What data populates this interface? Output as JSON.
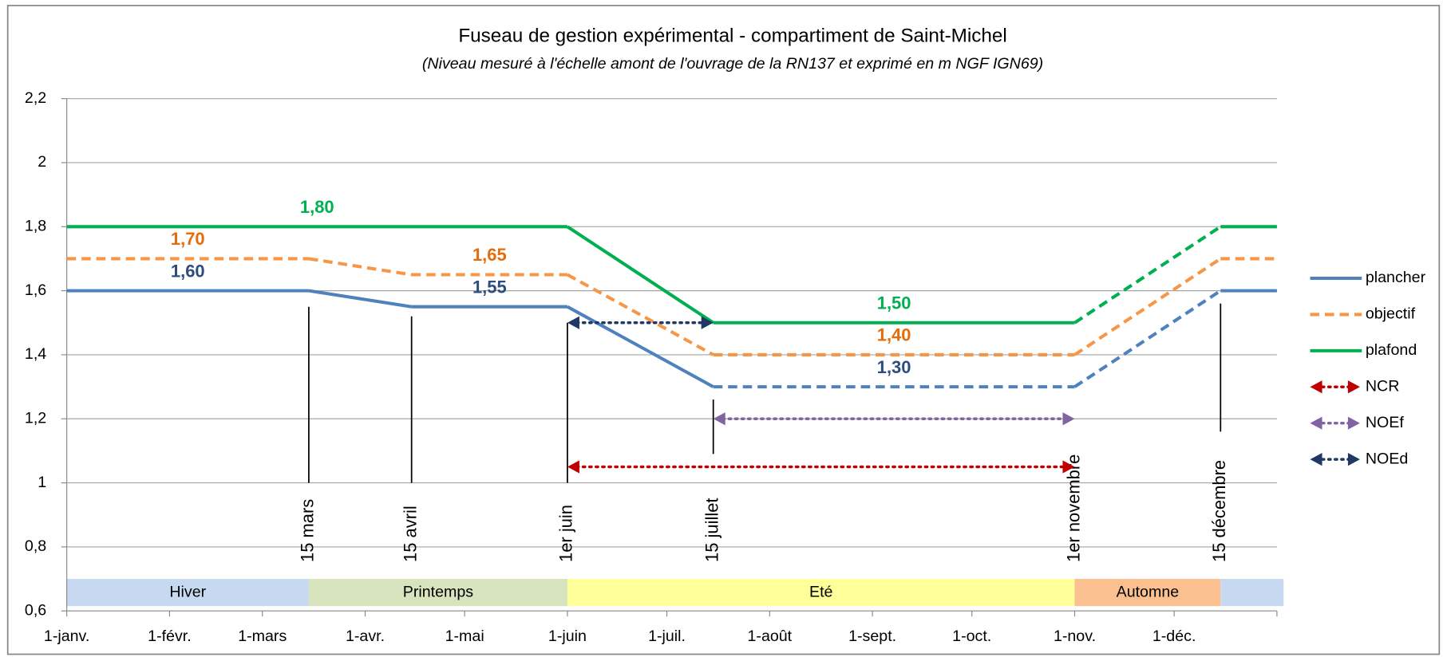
{
  "chart_data": {
    "type": "line",
    "title": "Fuseau de gestion expérimental - compartiment de Saint-Michel",
    "subtitle": "(Niveau mesuré à l'échelle amont de l'ouvrage de la RN137 et exprimé en m NGF IGN69)",
    "xlim": [
      0,
      365
    ],
    "xticks": [
      {
        "value": 0,
        "label": "1-janv."
      },
      {
        "value": 31,
        "label": "1-févr."
      },
      {
        "value": 59,
        "label": "1-mars"
      },
      {
        "value": 90,
        "label": "1-avr."
      },
      {
        "value": 120,
        "label": "1-mai"
      },
      {
        "value": 151,
        "label": "1-juin"
      },
      {
        "value": 181,
        "label": "1-juil."
      },
      {
        "value": 212,
        "label": "1-août"
      },
      {
        "value": 243,
        "label": "1-sept."
      },
      {
        "value": 273,
        "label": "1-oct."
      },
      {
        "value": 304,
        "label": "1-nov."
      },
      {
        "value": 334,
        "label": "1-déc."
      }
    ],
    "ylim": [
      0.6,
      2.2
    ],
    "yticks": [
      {
        "value": 0.6,
        "label": "0,6"
      },
      {
        "value": 0.8,
        "label": "0,8"
      },
      1,
      {
        "value": 1.2,
        "label": "1,2"
      },
      {
        "value": 1.4,
        "label": "1,4"
      },
      {
        "value": 1.6,
        "label": "1,6"
      },
      {
        "value": 1.8,
        "label": "1,8"
      },
      2,
      {
        "value": 2.2,
        "label": "2,2"
      }
    ],
    "grid": true,
    "legend": "right",
    "series": [
      {
        "name": "plancher",
        "color": "#4f81bd",
        "label_color": "#2c4d7e",
        "x": [
          0,
          73,
          104,
          151,
          195,
          304,
          348,
          365
        ],
        "values": [
          1.6,
          1.6,
          1.55,
          1.55,
          1.3,
          1.3,
          1.6,
          1.6
        ],
        "value_labels": [
          "1,60",
          null,
          "1,55",
          null,
          "1,30",
          null,
          null,
          null
        ],
        "line_styles": [
          "solid",
          "solid",
          "solid",
          "solid",
          "dashed",
          "dashed",
          "solid"
        ]
      },
      {
        "name": "objectif",
        "color": "#f79646",
        "label_color": "#e46c0a",
        "x": [
          0,
          73,
          104,
          151,
          195,
          304,
          348,
          365
        ],
        "values": [
          1.7,
          1.7,
          1.65,
          1.65,
          1.4,
          1.4,
          1.7,
          1.7
        ],
        "value_labels": [
          "1,70",
          null,
          "1,65",
          null,
          "1,40",
          null,
          null,
          null
        ],
        "line_styles": [
          "dashed",
          "dashed",
          "dashed",
          "dashed",
          "dashed",
          "dashed",
          "dashed"
        ]
      },
      {
        "name": "plafond",
        "color": "#00b050",
        "label_color": "#00b050",
        "x": [
          0,
          151,
          195,
          304,
          348,
          365
        ],
        "values": [
          1.8,
          1.8,
          1.5,
          1.5,
          1.8,
          1.8
        ],
        "value_labels": [
          "1,80",
          null,
          "1,50",
          null,
          null,
          null
        ],
        "line_styles": [
          "solid",
          "solid",
          "solid",
          "dashed",
          "solid"
        ]
      }
    ],
    "arrows": [
      {
        "name": "NCR",
        "color": "#c00000",
        "x": [
          151,
          304
        ],
        "value": 1.05
      },
      {
        "name": "NOEf",
        "color": "#8064a2",
        "x": [
          195,
          304
        ],
        "value": 1.2
      },
      {
        "name": "NOEd",
        "color": "#1f3864",
        "x": [
          151,
          195
        ],
        "value": 1.5
      }
    ],
    "date_markers": [
      {
        "label": "15 mars",
        "x": 73,
        "from": 1.55,
        "to": 1.0
      },
      {
        "label": "15 avril",
        "x": 104,
        "from": 1.52,
        "to": 1.0
      },
      {
        "label": "1er juin",
        "x": 151,
        "from": 1.5,
        "to": 1.0
      },
      {
        "label": "15 juillet",
        "x": 195,
        "from": 1.26,
        "to": 1.09
      },
      {
        "label": "1er novembre",
        "x": 304,
        "from": null,
        "to": null
      },
      {
        "label": "15 décembre",
        "x": 348,
        "from": 1.56,
        "to": 1.16
      }
    ],
    "seasons": [
      {
        "label": "Hiver",
        "from": 0,
        "to": 73,
        "color": "#c6d9f1"
      },
      {
        "label": "Printemps",
        "from": 73,
        "to": 151,
        "color": "#d7e4bd"
      },
      {
        "label": "Eté",
        "from": 151,
        "to": 304,
        "color": "#ffff99"
      },
      {
        "label": "Automne",
        "from": 304,
        "to": 348,
        "color": "#fac090"
      },
      {
        "label": null,
        "from": 348,
        "to": 367,
        "color": "#c6d9f1"
      }
    ]
  }
}
